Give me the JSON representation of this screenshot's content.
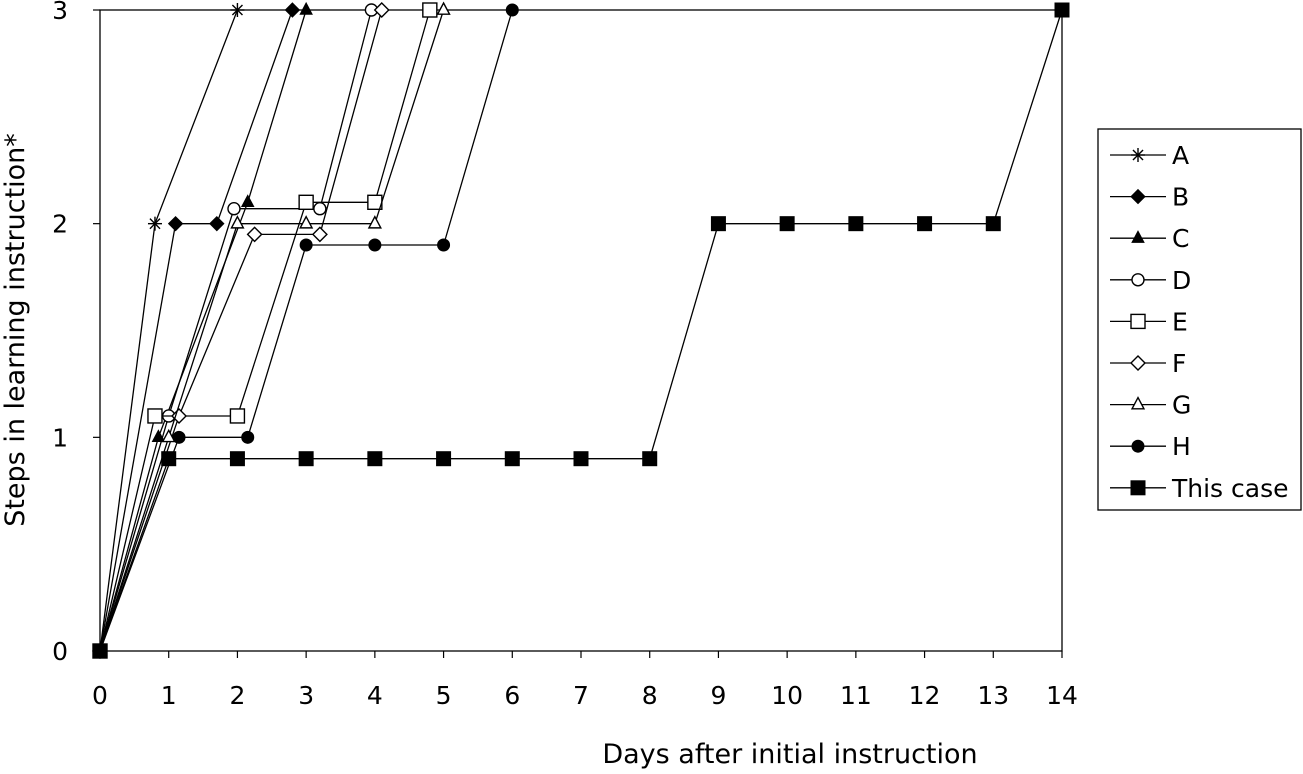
{
  "chart_data": {
    "type": "line",
    "xlabel": "Days after initial instruction",
    "ylabel": "Steps in learning instruction*",
    "xlim": [
      0,
      14
    ],
    "ylim": [
      0,
      3
    ],
    "x_ticks": [
      "0",
      "1",
      "2",
      "3",
      "4",
      "5",
      "6",
      "7",
      "8",
      "9",
      "10",
      "11",
      "12",
      "13",
      "14"
    ],
    "y_ticks": [
      "0",
      "1",
      "2",
      "3"
    ],
    "grid": false,
    "legend_position": "right",
    "series": [
      {
        "name": "A",
        "marker": "asterisk",
        "points": [
          [
            0,
            0
          ],
          [
            0.8,
            2
          ],
          [
            2,
            3
          ]
        ]
      },
      {
        "name": "B",
        "marker": "filled-diamond",
        "points": [
          [
            0,
            0
          ],
          [
            1.1,
            2
          ],
          [
            1.7,
            2
          ],
          [
            2.8,
            3
          ]
        ]
      },
      {
        "name": "C",
        "marker": "filled-triangle",
        "points": [
          [
            0,
            0
          ],
          [
            0.85,
            1
          ],
          [
            2.15,
            2.1
          ],
          [
            3,
            3
          ]
        ]
      },
      {
        "name": "D",
        "marker": "open-circle",
        "points": [
          [
            0,
            0
          ],
          [
            1,
            1.1
          ],
          [
            1.95,
            2.07
          ],
          [
            3.2,
            2.07
          ],
          [
            3.95,
            3
          ]
        ]
      },
      {
        "name": "E",
        "marker": "open-square",
        "points": [
          [
            0,
            0
          ],
          [
            0.8,
            1.1
          ],
          [
            2,
            1.1
          ],
          [
            3,
            2.1
          ],
          [
            4,
            2.1
          ],
          [
            4.8,
            3
          ]
        ]
      },
      {
        "name": "F",
        "marker": "open-diamond",
        "points": [
          [
            0,
            0
          ],
          [
            1.15,
            1.1
          ],
          [
            2.25,
            1.95
          ],
          [
            3.2,
            1.95
          ],
          [
            4.1,
            3
          ]
        ]
      },
      {
        "name": "G",
        "marker": "open-triangle",
        "points": [
          [
            0,
            0
          ],
          [
            1,
            1
          ],
          [
            2,
            2
          ],
          [
            3,
            2
          ],
          [
            4,
            2
          ],
          [
            5,
            3
          ]
        ]
      },
      {
        "name": "H",
        "marker": "filled-circle",
        "points": [
          [
            0,
            0
          ],
          [
            1.15,
            1
          ],
          [
            2.15,
            1
          ],
          [
            3,
            1.9
          ],
          [
            4,
            1.9
          ],
          [
            5,
            1.9
          ],
          [
            6,
            3
          ]
        ]
      },
      {
        "name": "This case",
        "marker": "filled-square",
        "points": [
          [
            0,
            0
          ],
          [
            1,
            0.9
          ],
          [
            2,
            0.9
          ],
          [
            3,
            0.9
          ],
          [
            4,
            0.9
          ],
          [
            5,
            0.9
          ],
          [
            6,
            0.9
          ],
          [
            7,
            0.9
          ],
          [
            8,
            0.9
          ],
          [
            9,
            2
          ],
          [
            10,
            2
          ],
          [
            11,
            2
          ],
          [
            12,
            2
          ],
          [
            13,
            2
          ],
          [
            14,
            3
          ]
        ]
      }
    ]
  }
}
